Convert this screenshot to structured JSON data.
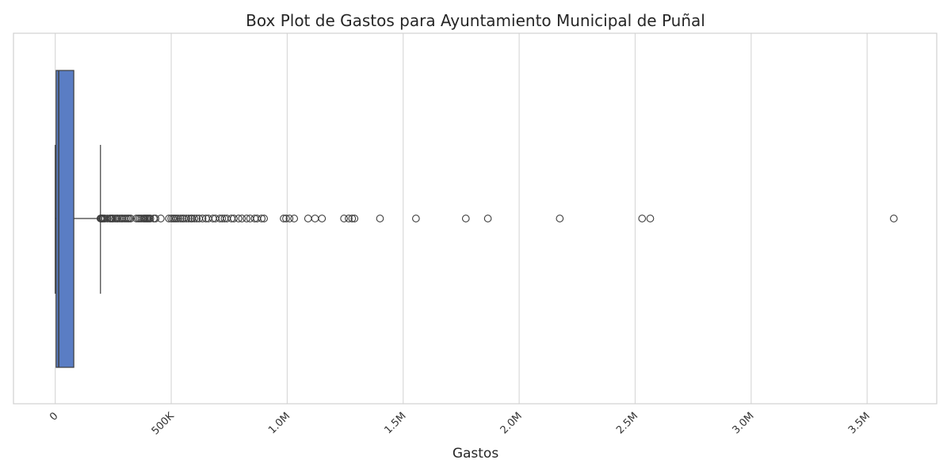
{
  "chart_data": {
    "type": "box",
    "orientation": "horizontal",
    "title": "Box Plot de Gastos para Ayuntamiento Municipal de Puñal",
    "xlabel": "Gastos",
    "ylabel": "",
    "xlim": [
      -180000,
      3800000
    ],
    "xticks": [
      0,
      500000,
      1000000,
      1500000,
      2000000,
      2500000,
      3000000,
      3500000
    ],
    "xtick_labels": [
      "0",
      "500K",
      "1.0M",
      "1.5M",
      "2.0M",
      "2.5M",
      "3.0M",
      "3.5M"
    ],
    "grid": "vertical",
    "box": {
      "whisker_low": 0,
      "q1": 4000,
      "median": 15000,
      "q3": 80000,
      "whisker_high": 195000
    },
    "outliers": [
      195000,
      198000,
      202000,
      205000,
      210000,
      215000,
      225000,
      235000,
      240000,
      245000,
      250000,
      258000,
      265000,
      270000,
      278000,
      285000,
      290000,
      298000,
      305000,
      312000,
      318000,
      325000,
      350000,
      358000,
      365000,
      372000,
      380000,
      385000,
      390000,
      395000,
      400000,
      405000,
      410000,
      425000,
      432000,
      455000,
      490000,
      500000,
      508000,
      515000,
      522000,
      530000,
      540000,
      548000,
      555000,
      565000,
      575000,
      585000,
      590000,
      600000,
      610000,
      620000,
      635000,
      650000,
      660000,
      680000,
      690000,
      710000,
      720000,
      730000,
      740000,
      760000,
      770000,
      790000,
      805000,
      825000,
      840000,
      860000,
      870000,
      890000,
      900000,
      985000,
      995000,
      1010000,
      1030000,
      1090000,
      1120000,
      1150000,
      1245000,
      1265000,
      1280000,
      1290000,
      1400000,
      1555000,
      1770000,
      1865000,
      2175000,
      2530000,
      2565000,
      3615000
    ],
    "color": "#4C72B0",
    "box_fill": "#5a7dc4",
    "line_color": "#3d3d3d"
  }
}
